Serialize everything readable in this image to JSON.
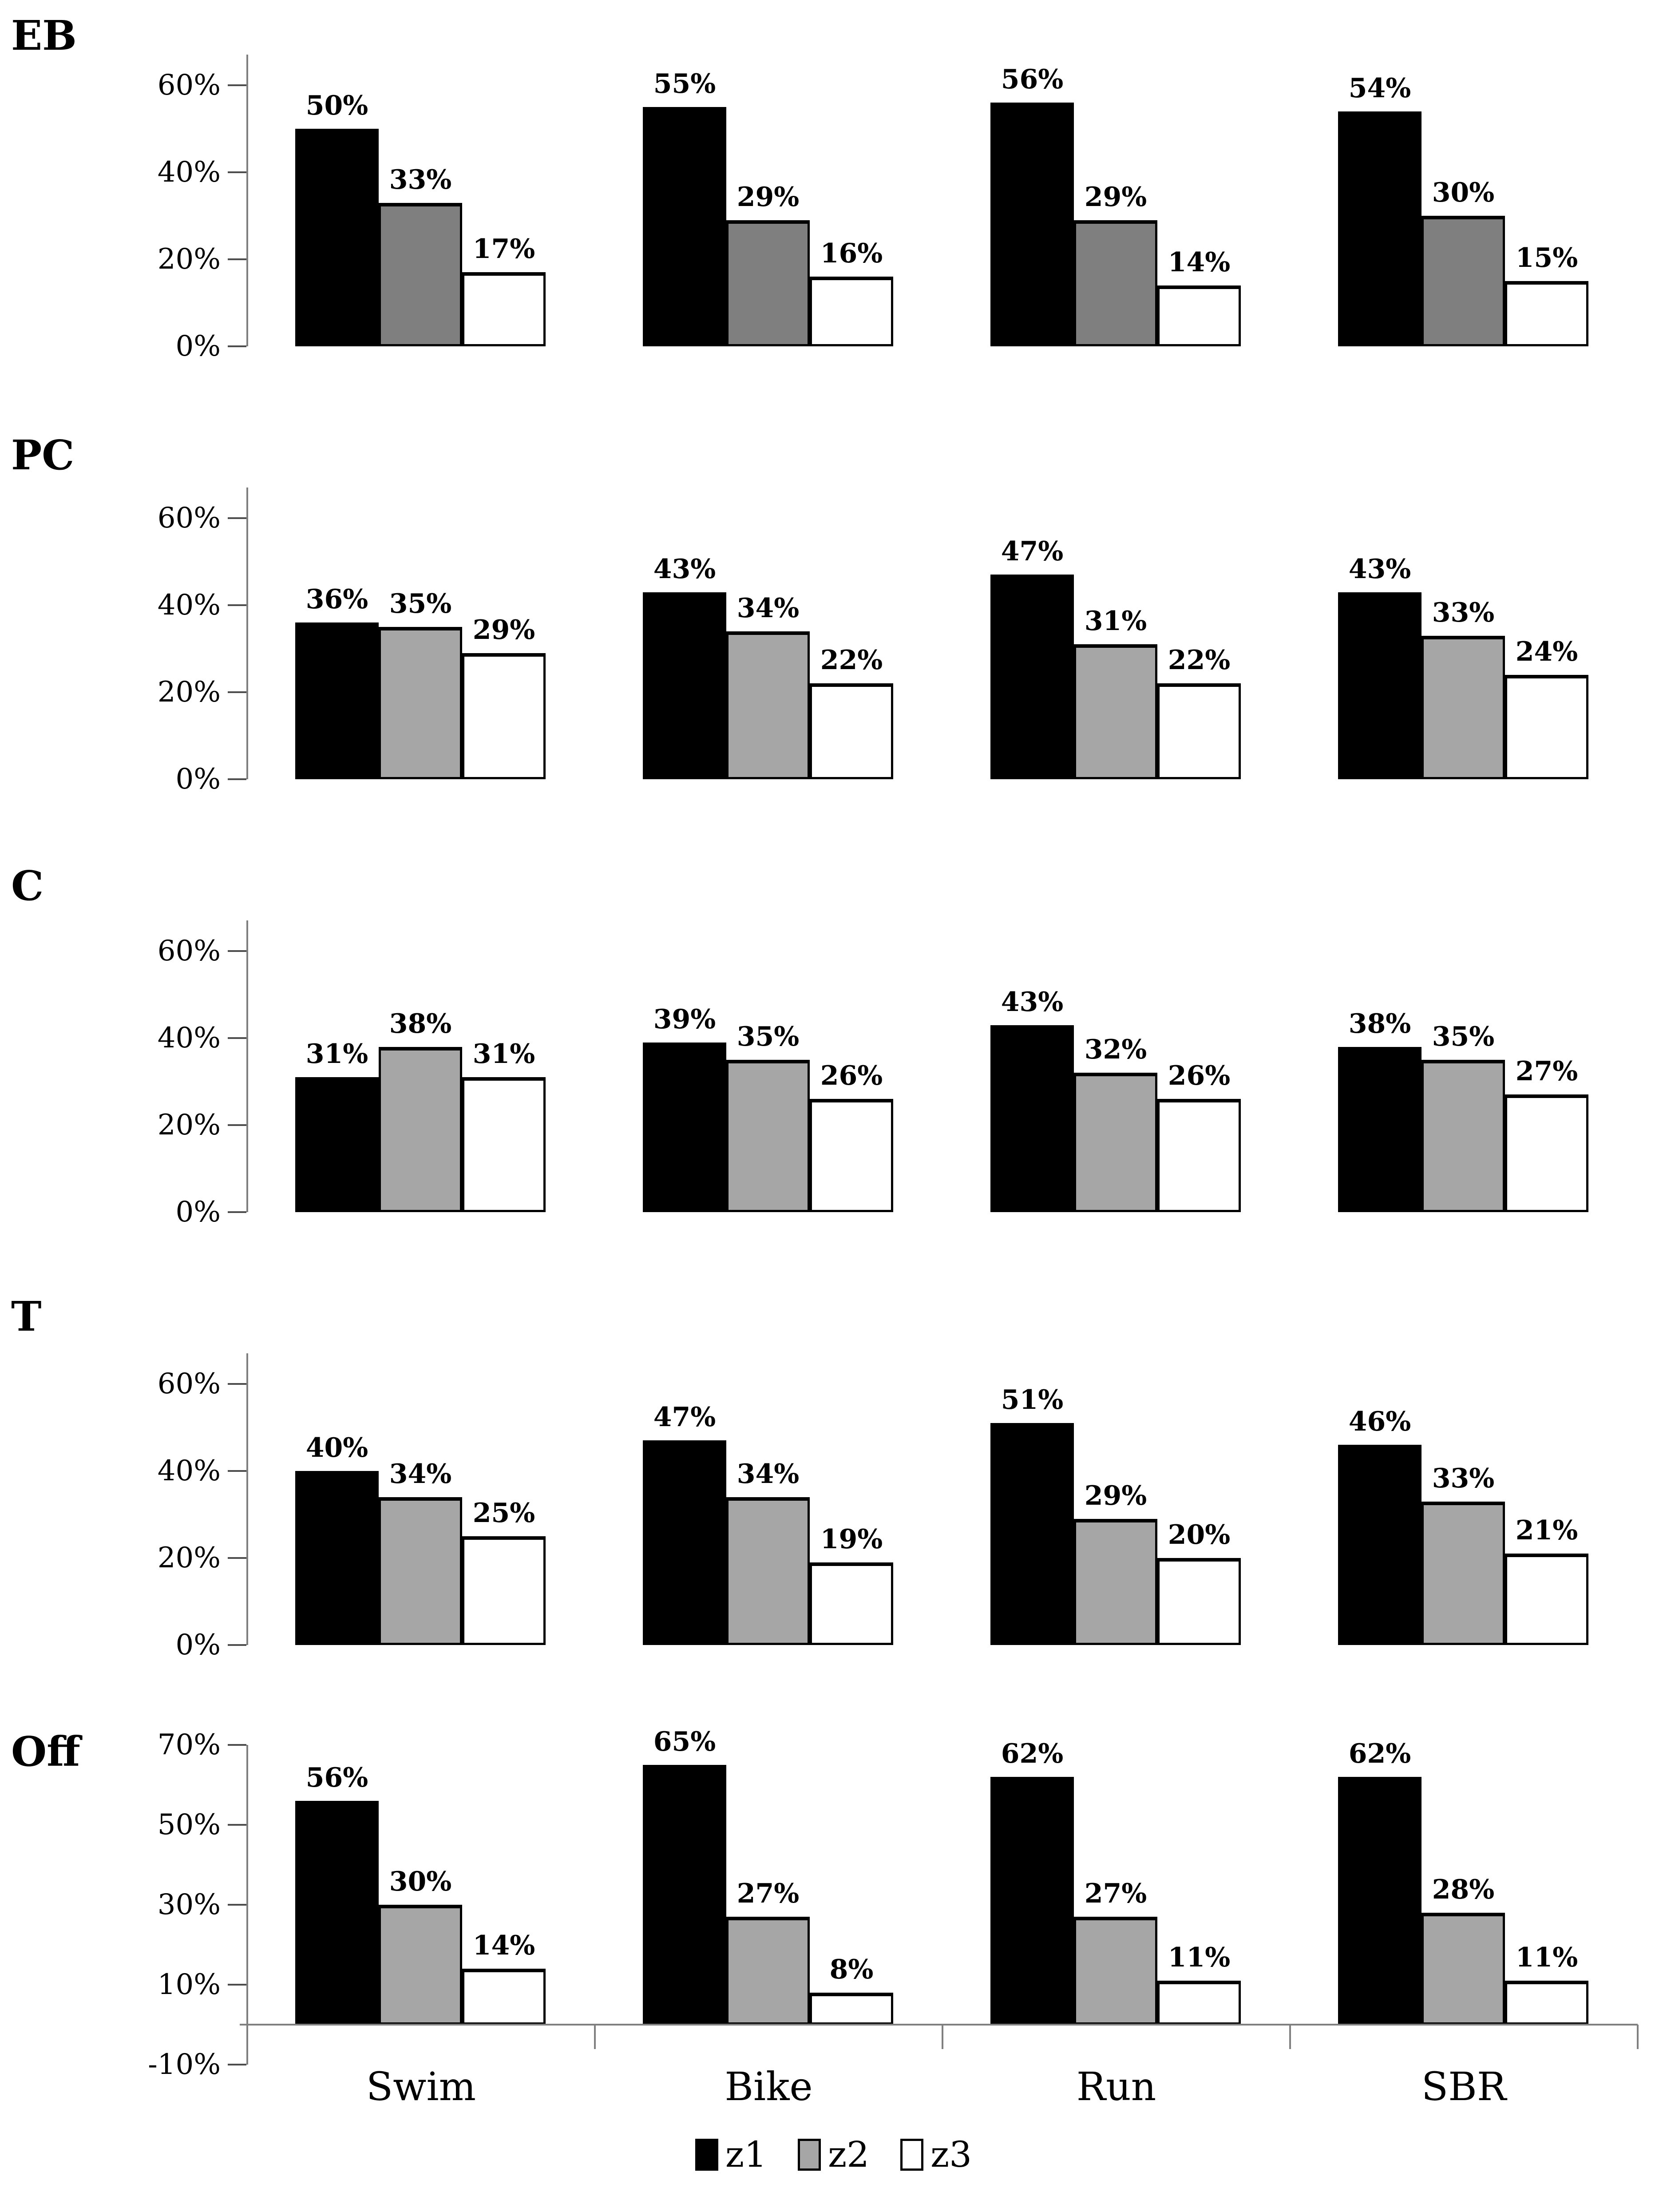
{
  "figure": {
    "categories": [
      "Swim",
      "Bike",
      "Run",
      "SBR"
    ],
    "unit": "%",
    "colors": {
      "z1": "#000000",
      "z2_dark": "#7f7f7f",
      "z2_light": "#a6a6a6",
      "z3": "#ffffff",
      "axis": "#7f7f7f"
    },
    "legend": {
      "items": [
        {
          "label": "z1",
          "color": "#000000"
        },
        {
          "label": "z2",
          "color": "#a6a6a6"
        },
        {
          "label": "z3",
          "color": "#ffffff"
        }
      ]
    }
  },
  "chart_data": [
    {
      "type": "bar",
      "panel_label": "EB",
      "categories": [
        "Swim",
        "Bike",
        "Run",
        "SBR"
      ],
      "series": [
        {
          "name": "z1",
          "values": [
            50,
            55,
            56,
            54
          ]
        },
        {
          "name": "z2",
          "values": [
            33,
            29,
            29,
            30
          ]
        },
        {
          "name": "z3",
          "values": [
            17,
            16,
            14,
            15
          ]
        }
      ],
      "series_colors": [
        "#000000",
        "#7f7f7f",
        "#ffffff"
      ],
      "yticks": [
        {
          "label": "0%",
          "value": 0
        },
        {
          "label": "20%",
          "value": 20
        },
        {
          "label": "40%",
          "value": 40
        },
        {
          "label": "60%",
          "value": 60
        }
      ],
      "ylim": [
        0,
        67
      ],
      "x_labels_visible": false
    },
    {
      "type": "bar",
      "panel_label": "PC",
      "categories": [
        "Swim",
        "Bike",
        "Run",
        "SBR"
      ],
      "series": [
        {
          "name": "z1",
          "values": [
            36,
            43,
            47,
            43
          ]
        },
        {
          "name": "z2",
          "values": [
            35,
            34,
            31,
            33
          ]
        },
        {
          "name": "z3",
          "values": [
            29,
            22,
            22,
            24
          ]
        }
      ],
      "series_colors": [
        "#000000",
        "#a6a6a6",
        "#ffffff"
      ],
      "yticks": [
        {
          "label": "0%",
          "value": 0
        },
        {
          "label": "20%",
          "value": 20
        },
        {
          "label": "40%",
          "value": 40
        },
        {
          "label": "60%",
          "value": 60
        }
      ],
      "ylim": [
        0,
        67
      ],
      "x_labels_visible": false
    },
    {
      "type": "bar",
      "panel_label": "C",
      "categories": [
        "Swim",
        "Bike",
        "Run",
        "SBR"
      ],
      "series": [
        {
          "name": "z1",
          "values": [
            31,
            39,
            43,
            38
          ]
        },
        {
          "name": "z2",
          "values": [
            38,
            35,
            32,
            35
          ]
        },
        {
          "name": "z3",
          "values": [
            31,
            26,
            26,
            27
          ]
        }
      ],
      "series_colors": [
        "#000000",
        "#a6a6a6",
        "#ffffff"
      ],
      "yticks": [
        {
          "label": "0%",
          "value": 0
        },
        {
          "label": "20%",
          "value": 20
        },
        {
          "label": "40%",
          "value": 40
        },
        {
          "label": "60%",
          "value": 60
        }
      ],
      "ylim": [
        0,
        67
      ],
      "x_labels_visible": false
    },
    {
      "type": "bar",
      "panel_label": "T",
      "categories": [
        "Swim",
        "Bike",
        "Run",
        "SBR"
      ],
      "series": [
        {
          "name": "z1",
          "values": [
            40,
            47,
            51,
            46
          ]
        },
        {
          "name": "z2",
          "values": [
            34,
            34,
            29,
            33
          ]
        },
        {
          "name": "z3",
          "values": [
            25,
            19,
            20,
            21
          ]
        }
      ],
      "series_colors": [
        "#000000",
        "#a6a6a6",
        "#ffffff"
      ],
      "yticks": [
        {
          "label": "0%",
          "value": 0
        },
        {
          "label": "20%",
          "value": 20
        },
        {
          "label": "40%",
          "value": 40
        },
        {
          "label": "60%",
          "value": 60
        }
      ],
      "ylim": [
        0,
        67
      ],
      "x_labels_visible": false
    },
    {
      "type": "bar",
      "panel_label": "Off",
      "categories": [
        "Swim",
        "Bike",
        "Run",
        "SBR"
      ],
      "series": [
        {
          "name": "z1",
          "values": [
            56,
            65,
            62,
            62
          ]
        },
        {
          "name": "z2",
          "values": [
            30,
            27,
            27,
            28
          ]
        },
        {
          "name": "z3",
          "values": [
            14,
            8,
            11,
            11
          ]
        }
      ],
      "series_colors": [
        "#000000",
        "#a6a6a6",
        "#ffffff"
      ],
      "yticks": [
        {
          "label": "-10%",
          "value": -10
        },
        {
          "label": "10%",
          "value": 10
        },
        {
          "label": "30%",
          "value": 30
        },
        {
          "label": "50%",
          "value": 50
        },
        {
          "label": "70%",
          "value": 70
        }
      ],
      "ylim": [
        -10,
        70
      ],
      "x_labels_visible": true
    }
  ]
}
